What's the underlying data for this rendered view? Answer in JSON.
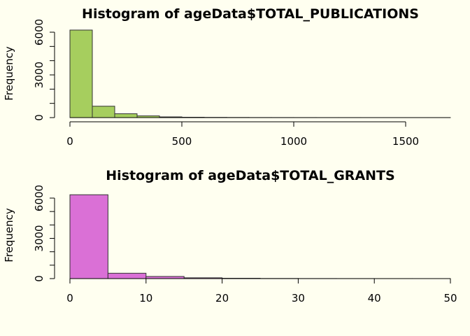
{
  "colors": {
    "background": "#fffff0",
    "bar_outline": "#333333"
  },
  "chart_data": [
    {
      "type": "bar",
      "title": "Histogram of ageData$TOTAL_PUBLICATIONS",
      "xlabel": "",
      "ylabel": "Frequency",
      "bar_color": "#a6ce5e",
      "bin_edges": [
        0,
        100,
        200,
        300,
        400,
        500,
        600,
        700,
        800,
        900,
        1000,
        1100,
        1200,
        1300,
        1400,
        1500,
        1600,
        1700
      ],
      "values": [
        6150,
        800,
        270,
        120,
        50,
        25,
        15,
        10,
        5,
        4,
        3,
        2,
        2,
        1,
        1,
        1,
        1
      ],
      "xlim": [
        0,
        1700
      ],
      "ylim": [
        0,
        6000
      ],
      "x_ticks": [
        0,
        500,
        1000,
        1500
      ],
      "y_ticks": [
        0,
        1000,
        2000,
        3000,
        4000,
        5000,
        6000
      ],
      "y_tick_labels": [
        "0",
        "",
        "",
        "3000",
        "",
        "",
        "6000"
      ],
      "grid": false
    },
    {
      "type": "bar",
      "title": "Histogram of ageData$TOTAL_GRANTS",
      "xlabel": "",
      "ylabel": "Frequency",
      "bar_color": "#da70d6",
      "bin_edges": [
        0,
        5,
        10,
        15,
        20,
        25,
        30,
        35,
        40,
        45,
        50
      ],
      "values": [
        6250,
        400,
        160,
        60,
        25,
        10,
        5,
        3,
        2,
        1
      ],
      "xlim": [
        0,
        50
      ],
      "ylim": [
        0,
        6000
      ],
      "x_ticks": [
        0,
        10,
        20,
        30,
        40,
        50
      ],
      "y_ticks": [
        0,
        1000,
        2000,
        3000,
        4000,
        5000,
        6000
      ],
      "y_tick_labels": [
        "0",
        "",
        "",
        "3000",
        "",
        "",
        "6000"
      ],
      "grid": false
    }
  ]
}
